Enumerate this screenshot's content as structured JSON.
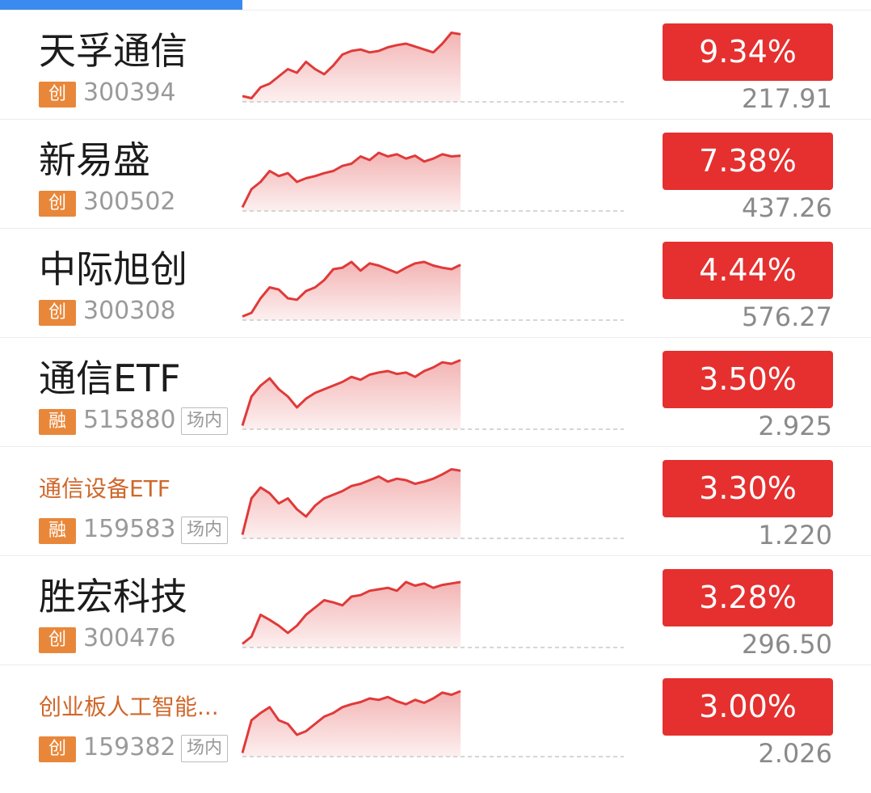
{
  "items": [
    {
      "name": "天孚通信",
      "board": "创",
      "code": "300394",
      "change": "9.34%",
      "price": "217.91",
      "sparkline": [
        8,
        5,
        20,
        25,
        35,
        45,
        40,
        55,
        45,
        38,
        50,
        65,
        70,
        72,
        68,
        70,
        75,
        78,
        80,
        76,
        72,
        68,
        80,
        95,
        93
      ]
    },
    {
      "name": "新易盛",
      "board": "创",
      "code": "300502",
      "change": "7.38%",
      "price": "437.26",
      "sparkline": [
        5,
        30,
        40,
        55,
        48,
        52,
        40,
        45,
        48,
        52,
        55,
        62,
        65,
        75,
        70,
        80,
        75,
        78,
        72,
        76,
        68,
        72,
        78,
        75,
        76
      ]
    },
    {
      "name": "中际旭创",
      "board": "创",
      "code": "300308",
      "change": "4.44%",
      "price": "576.27",
      "sparkline": [
        5,
        10,
        30,
        45,
        42,
        30,
        28,
        40,
        45,
        55,
        70,
        72,
        80,
        68,
        78,
        75,
        70,
        65,
        72,
        78,
        80,
        75,
        72,
        70,
        76
      ]
    },
    {
      "name": "通信ETF",
      "board": "融",
      "code": "515880",
      "tag": "场内",
      "change": "3.50%",
      "price": "2.925",
      "sparkline": [
        5,
        45,
        60,
        70,
        55,
        45,
        30,
        42,
        50,
        55,
        60,
        65,
        72,
        68,
        75,
        78,
        80,
        76,
        78,
        72,
        80,
        85,
        92,
        90,
        95
      ]
    },
    {
      "name": "通信设备ETF",
      "board": "融",
      "code": "159583",
      "tag": "场内",
      "change": "3.30%",
      "price": "1.220",
      "sparkline": [
        5,
        55,
        70,
        62,
        48,
        55,
        40,
        30,
        45,
        55,
        60,
        65,
        72,
        75,
        80,
        85,
        78,
        82,
        80,
        75,
        78,
        82,
        88,
        95,
        93
      ]
    },
    {
      "name": "胜宏科技",
      "board": "创",
      "code": "300476",
      "change": "3.28%",
      "price": "296.50",
      "sparkline": [
        5,
        15,
        45,
        38,
        30,
        20,
        30,
        45,
        55,
        65,
        62,
        58,
        70,
        72,
        78,
        80,
        82,
        78,
        90,
        85,
        88,
        82,
        86,
        88,
        90
      ]
    },
    {
      "name": "创业板人工智能...",
      "board": "创",
      "code": "159382",
      "tag": "场内",
      "change": "3.00%",
      "price": "2.026",
      "sparkline": [
        5,
        50,
        60,
        68,
        50,
        45,
        30,
        35,
        45,
        55,
        60,
        68,
        72,
        75,
        80,
        78,
        82,
        76,
        72,
        78,
        74,
        80,
        88,
        85,
        90
      ]
    }
  ]
}
